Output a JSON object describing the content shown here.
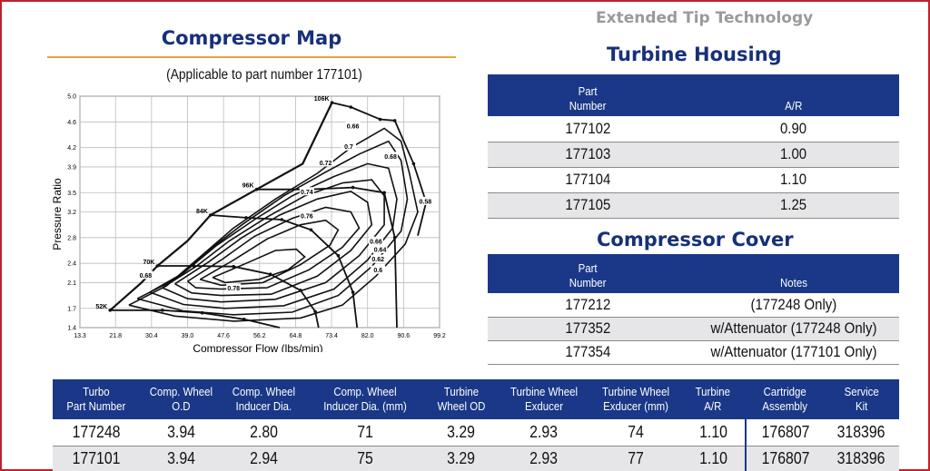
{
  "compressor_map": {
    "title": "Compressor Map",
    "subtitle": "(Applicable to part number 177101)"
  },
  "extended_tip": "Extended Tip Technology",
  "turbine_housing": {
    "title": "Turbine Housing",
    "headers": [
      "Part\nNumber",
      "A/R"
    ],
    "rows": [
      [
        "177102",
        "0.90"
      ],
      [
        "177103",
        "1.00"
      ],
      [
        "177104",
        "1.10"
      ],
      [
        "177105",
        "1.25"
      ]
    ]
  },
  "compressor_cover": {
    "title": "Compressor Cover",
    "headers": [
      "Part\nNumber",
      "Notes"
    ],
    "rows": [
      [
        "177212",
        "(177248 Only)"
      ],
      [
        "177352",
        "w/Attenuator (177248 Only)"
      ],
      [
        "177354",
        "w/Attenuator (177101 Only)"
      ]
    ]
  },
  "turbo_table": {
    "headers": [
      "Turbo\nPart Number",
      "Comp. Wheel\nO.D",
      "Comp. Wheel\nInducer Dia.",
      "Comp. Wheel\nInducer Dia. (mm)",
      "Turbine\nWheel OD",
      "Turbine Wheel\nExducer",
      "Turbine Wheel\nExducer (mm)",
      "Turbine\nA/R",
      "Cartridge\nAssembly",
      "Service\nKit"
    ],
    "rows": [
      [
        "177248",
        "3.94",
        "2.80",
        "71",
        "3.29",
        "2.93",
        "74",
        "1.10",
        "176807",
        "318396"
      ],
      [
        "177101",
        "3.94",
        "2.94",
        "75",
        "3.29",
        "2.93",
        "77",
        "1.10",
        "176807",
        "318396"
      ]
    ]
  },
  "chart_data": {
    "type": "line",
    "title": "",
    "xlabel": "Compressor Flow (lbs/min)",
    "ylabel": "Pressure Ratio",
    "xlim": [
      13.3,
      99.2
    ],
    "ylim": [
      1.4,
      5.0
    ],
    "x_ticks": [
      "13.3",
      "21.8",
      "30.4",
      "39.0",
      "47.6",
      "56.2",
      "64.8",
      "73.4",
      "82.0",
      "90.6",
      "99.2"
    ],
    "y_ticks": [
      "1.4",
      "1.7",
      "2.1",
      "2.4",
      "2.8",
      "3.2",
      "3.5",
      "3.9",
      "4.2",
      "4.6",
      "5.0"
    ],
    "grid": true,
    "surge_line": [
      [
        20.5,
        1.67
      ],
      [
        28.0,
        2.1
      ],
      [
        31.8,
        2.36
      ],
      [
        39.0,
        2.75
      ],
      [
        44.5,
        3.15
      ],
      [
        55.5,
        3.55
      ],
      [
        66.5,
        3.95
      ],
      [
        73.5,
        4.9
      ]
    ],
    "speed_lines": [
      {
        "label": "52K",
        "points": [
          [
            20.5,
            1.67
          ],
          [
            33.0,
            1.67
          ],
          [
            42.5,
            1.63
          ],
          [
            52.5,
            1.53
          ],
          [
            61.0,
            1.4
          ]
        ]
      },
      {
        "label": "70K",
        "points": [
          [
            31.8,
            2.36
          ],
          [
            40.5,
            2.36
          ],
          [
            50.0,
            2.35
          ],
          [
            58.8,
            2.23
          ],
          [
            66.0,
            1.98
          ],
          [
            69.5,
            1.65
          ],
          [
            70.3,
            1.4
          ]
        ]
      },
      {
        "label": "84K",
        "points": [
          [
            44.5,
            3.15
          ],
          [
            53.0,
            3.11
          ],
          [
            61.5,
            3.08
          ],
          [
            68.5,
            2.92
          ],
          [
            75.0,
            2.52
          ],
          [
            78.5,
            1.95
          ],
          [
            79.5,
            1.4
          ]
        ]
      },
      {
        "label": "96K",
        "points": [
          [
            55.5,
            3.55
          ],
          [
            68.0,
            3.55
          ],
          [
            78.5,
            3.58
          ],
          [
            86.0,
            3.5
          ],
          [
            88.5,
            2.8
          ],
          [
            89.0,
            1.4
          ]
        ]
      },
      {
        "label": "106K",
        "points": [
          [
            73.5,
            4.9
          ],
          [
            78.0,
            4.83
          ],
          [
            85.0,
            4.64
          ],
          [
            88.5,
            4.62
          ],
          [
            93.0,
            3.95
          ],
          [
            96.0,
            3.35
          ],
          [
            94.0,
            2.83
          ]
        ]
      }
    ],
    "efficiency_labels": [
      "0.58",
      "0.6",
      "0.62",
      "0.64",
      "0.66",
      "0.66",
      "0.68",
      "0.68",
      "0.7",
      "0.72",
      "0.74",
      "0.76",
      "0.78"
    ],
    "colors": {
      "header": "#1a3887",
      "title": "#17307a",
      "rule": "#e8a33c",
      "frame": "#c0202a"
    }
  }
}
